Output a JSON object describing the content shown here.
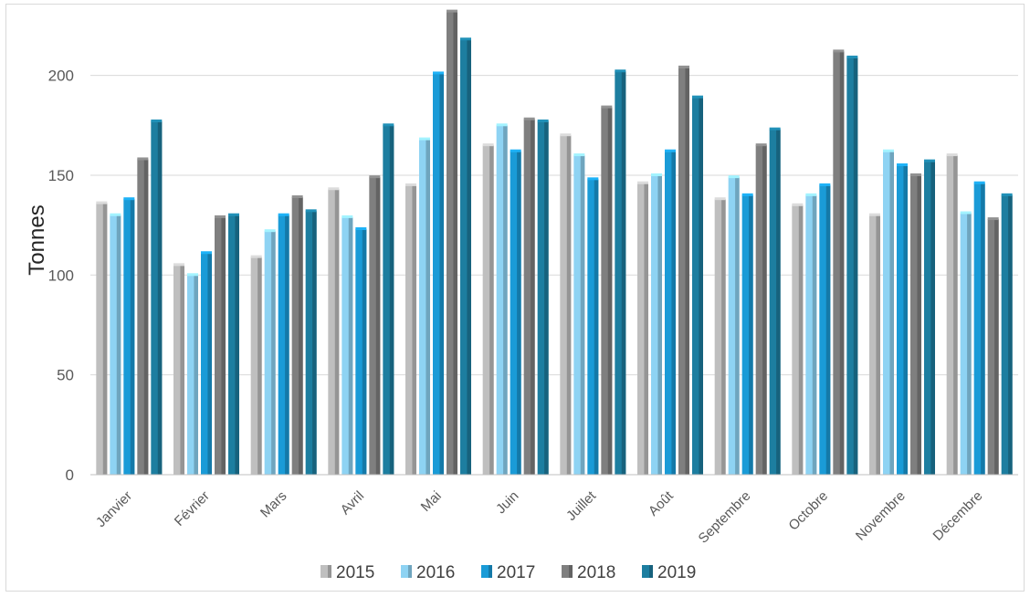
{
  "chart_data": {
    "type": "bar",
    "title": "",
    "xlabel": "",
    "ylabel": "Tonnes",
    "ylim": [
      0,
      230
    ],
    "yticks": [
      0,
      50,
      100,
      150,
      200
    ],
    "grid": true,
    "legend_position": "bottom",
    "categories": [
      "Janvier",
      "Février",
      "Mars",
      "Avril",
      "Mai",
      "Juin",
      "Juillet",
      "Août",
      "Septembre",
      "Octobre",
      "Novembre",
      "Décembre"
    ],
    "series": [
      {
        "name": "2015",
        "color": "#bfbfbf",
        "values": [
          136,
          105,
          109,
          143,
          145,
          165,
          170,
          146,
          138,
          135,
          130,
          160
        ]
      },
      {
        "name": "2016",
        "color": "#8ed3f3",
        "values": [
          130,
          100,
          122,
          129,
          168,
          175,
          160,
          150,
          149,
          140,
          162,
          131
        ]
      },
      {
        "name": "2017",
        "color": "#1a9bd7",
        "values": [
          138,
          111,
          130,
          123,
          201,
          162,
          148,
          162,
          140,
          145,
          155,
          146
        ]
      },
      {
        "name": "2018",
        "color": "#7f7f7f",
        "values": [
          158,
          129,
          139,
          149,
          232,
          178,
          184,
          204,
          165,
          212,
          150,
          128
        ]
      },
      {
        "name": "2019",
        "color": "#1d7ea0",
        "values": [
          177,
          130,
          132,
          175,
          218,
          177,
          202,
          189,
          173,
          209,
          157,
          140
        ]
      }
    ]
  }
}
